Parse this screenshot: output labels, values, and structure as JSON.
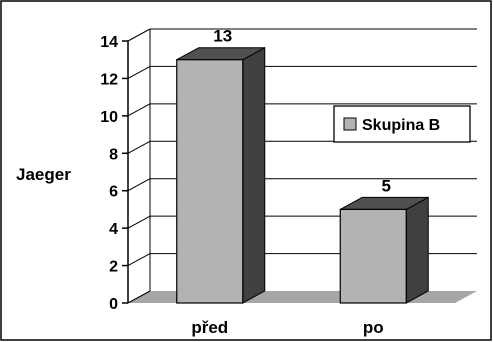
{
  "chart_data": {
    "type": "bar",
    "categories": [
      "před",
      "po"
    ],
    "series": [
      {
        "name": "Skupina B",
        "values": [
          13,
          5
        ]
      }
    ],
    "data_labels": [
      "13",
      "5"
    ],
    "ylabel": "Jaeger",
    "xlabel": "",
    "ylim": [
      0,
      14
    ],
    "yticks": [
      "0",
      "2",
      "4",
      "6",
      "8",
      "10",
      "12",
      "14"
    ],
    "grid": true,
    "legend": "right",
    "style_3d": true,
    "colors": {
      "bar_front": "#b3b3b3",
      "bar_side": "#404040",
      "bar_top": "#505050",
      "floor": "#a6a6a6",
      "grid": "#000000"
    }
  }
}
